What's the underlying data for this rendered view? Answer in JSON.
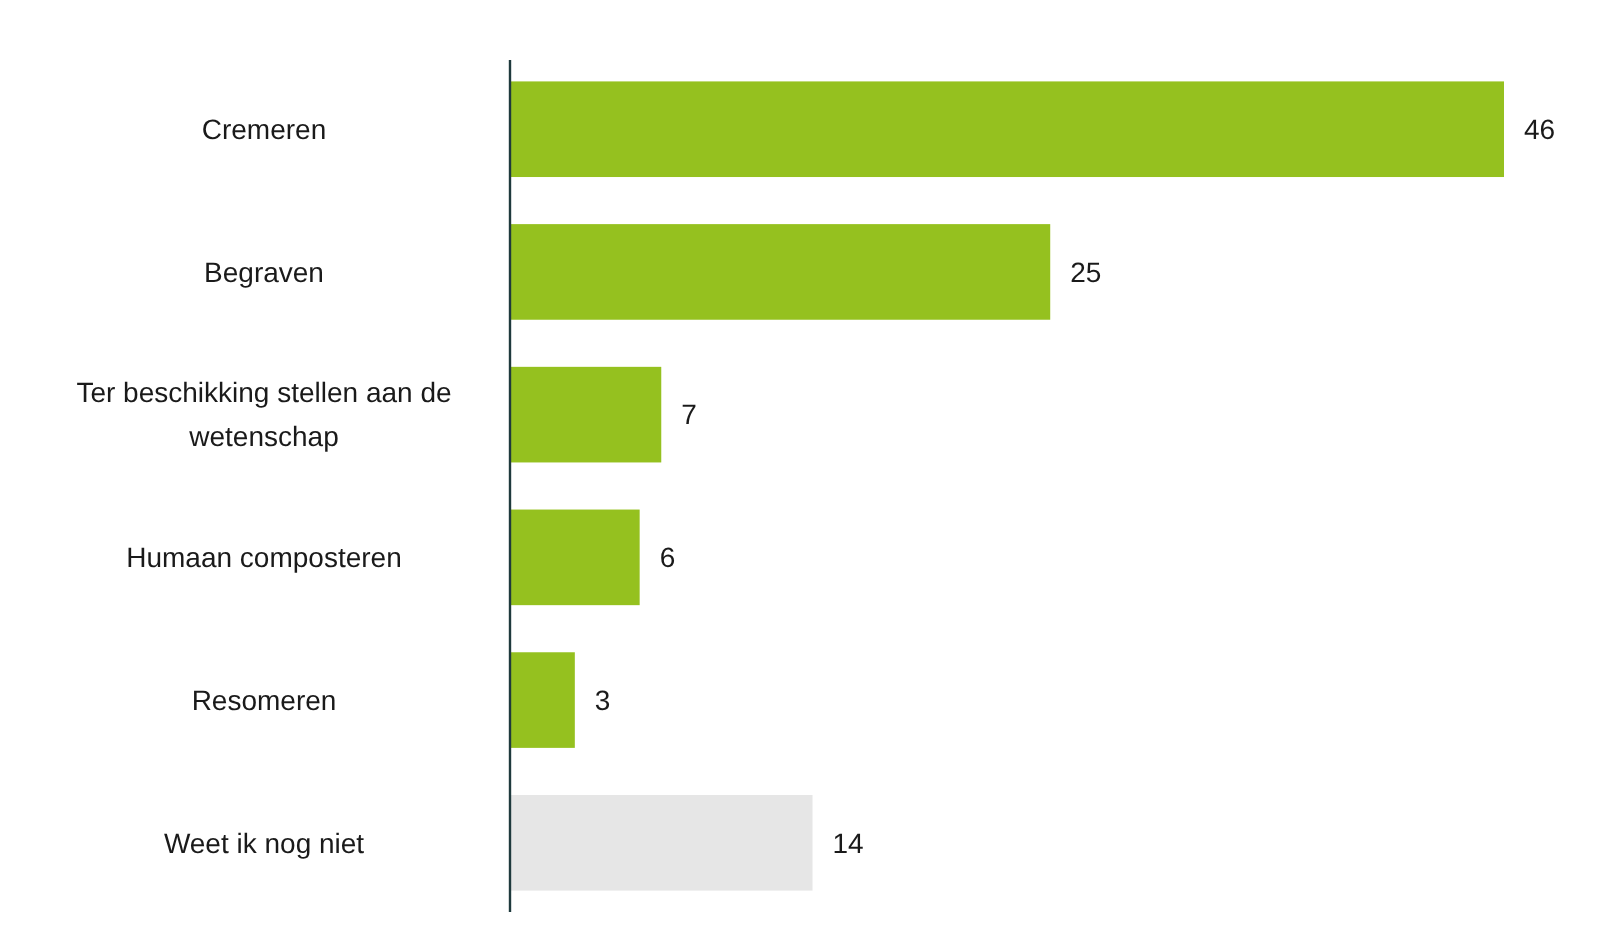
{
  "chart_data": {
    "type": "bar",
    "orientation": "horizontal",
    "categories": [
      "Cremeren",
      "Begraven",
      "Ter beschikking stellen aan de wetenschap",
      "Humaan composteren",
      "Resomeren",
      "Weet ik nog niet"
    ],
    "values": [
      46,
      25,
      7,
      6,
      3,
      14
    ],
    "colors": [
      "#95c11f",
      "#95c11f",
      "#95c11f",
      "#95c11f",
      "#95c11f",
      "#e6e6e6"
    ],
    "data_labels": true
  }
}
